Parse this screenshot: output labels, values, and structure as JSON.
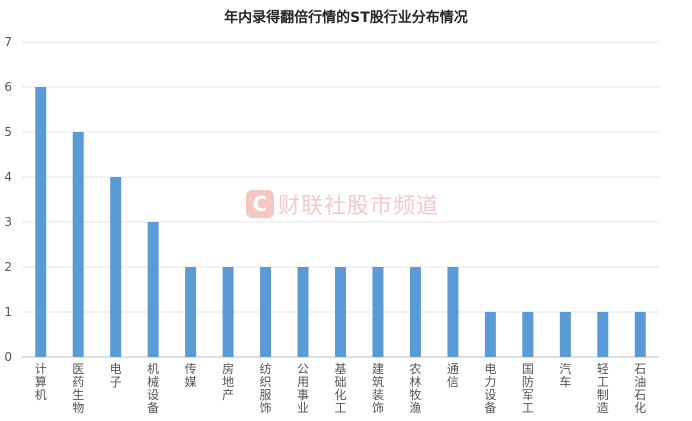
{
  "chart_data": {
    "type": "bar",
    "title": "年内录得翻倍行情的ST股行业分布情况",
    "categories": [
      "计算机",
      "医药生物",
      "电子",
      "机械设备",
      "传媒",
      "房地产",
      "纺织服饰",
      "公用事业",
      "基础化工",
      "建筑装饰",
      "农林牧渔",
      "通信",
      "电力设备",
      "国防军工",
      "汽车",
      "轻工制造",
      "石油石化"
    ],
    "values": [
      6,
      5,
      4,
      3,
      2,
      2,
      2,
      2,
      2,
      2,
      2,
      2,
      1,
      1,
      1,
      1,
      1
    ],
    "ylim": [
      0,
      7
    ],
    "yticks": [
      0,
      1,
      2,
      3,
      4,
      5,
      6,
      7
    ],
    "grid": true,
    "legend": "none",
    "bar_color": "#5b9bd5"
  },
  "watermark": {
    "logo_letter": "C",
    "text": "财联社股市频道"
  }
}
